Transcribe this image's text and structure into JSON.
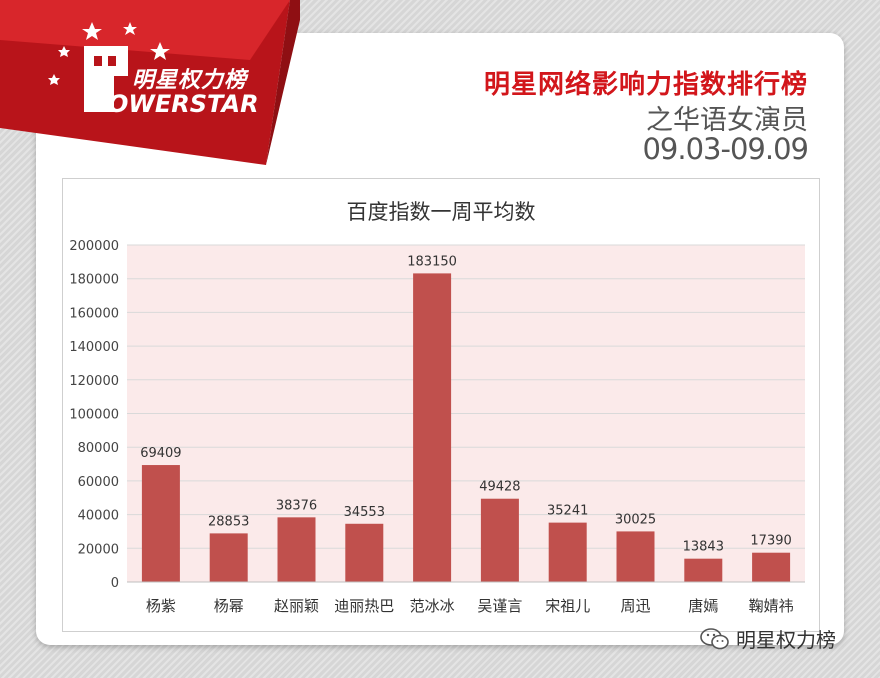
{
  "header": {
    "logo_cn": "明星权力榜",
    "logo_en": "OWERSTAR",
    "title_line1": "明星网络影响力指数排行榜",
    "title_line2": "之华语女演员",
    "title_line3": "09.03-09.09"
  },
  "watermark": {
    "text": "明星权力榜",
    "icon": "wechat-icon"
  },
  "colors": {
    "accent": "#d2161b",
    "bar": "#c0504d",
    "plot_bg": "#fbeaea",
    "grid": "#d9d9d9"
  },
  "chart_data": {
    "type": "bar",
    "title": "百度指数一周平均数",
    "categories": [
      "杨紫",
      "杨幂",
      "赵丽颖",
      "迪丽热巴",
      "范冰冰",
      "吴谨言",
      "宋祖儿",
      "周迅",
      "唐嫣",
      "鞠婧祎"
    ],
    "values": [
      69409,
      28853,
      38376,
      34553,
      183150,
      49428,
      35241,
      30025,
      13843,
      17390
    ],
    "ylim": [
      0,
      200000
    ],
    "yticks": [
      0,
      20000,
      40000,
      60000,
      80000,
      100000,
      120000,
      140000,
      160000,
      180000,
      200000
    ],
    "xlabel": "",
    "ylabel": "",
    "grid": true,
    "data_labels": true
  }
}
